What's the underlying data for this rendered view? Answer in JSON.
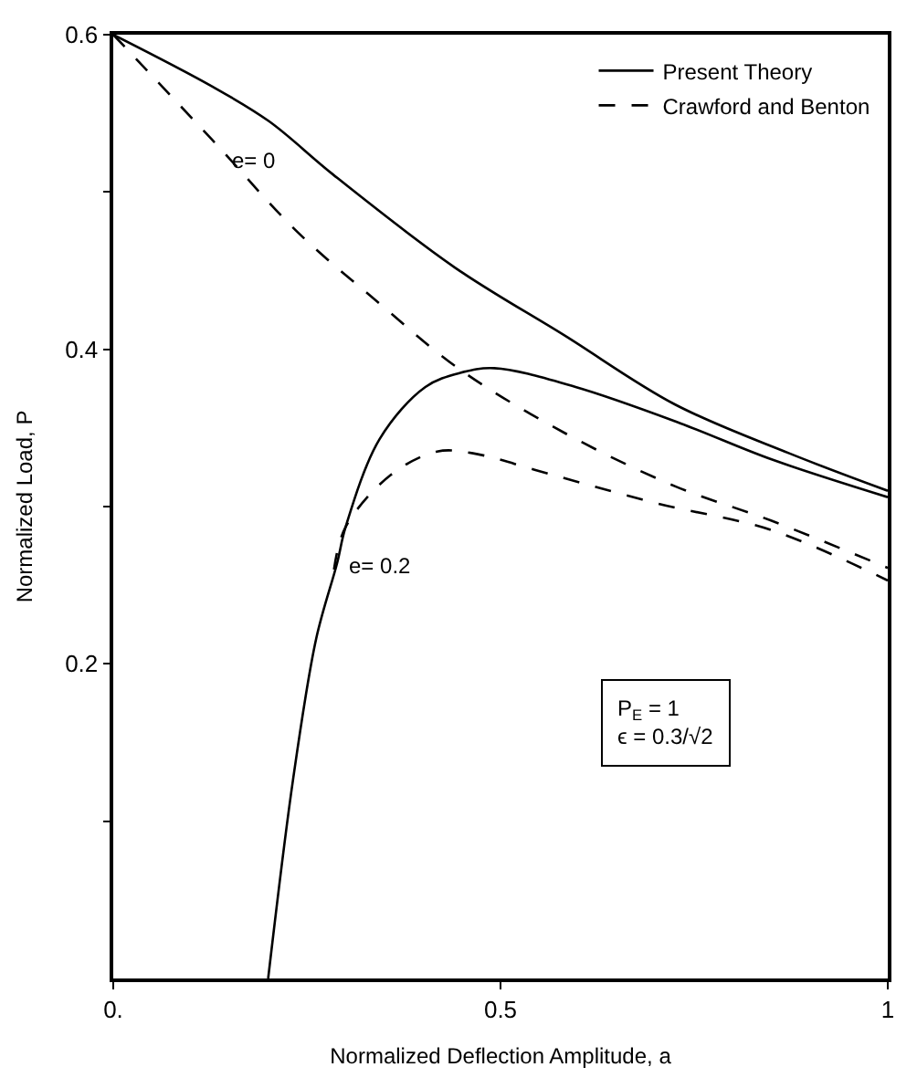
{
  "chart_data": {
    "type": "line",
    "xlabel": "Normalized Deflection Amplitude, a",
    "ylabel": "Normalized Load, P",
    "xlim": [
      0,
      1
    ],
    "ylim": [
      0,
      0.6
    ],
    "xticks": [
      {
        "value": 0,
        "label": "0."
      },
      0.5,
      1
    ],
    "yticks": [
      {
        "value": 0.1,
        "label": null
      },
      0.2,
      {
        "value": 0.3,
        "label": null
      },
      0.4,
      {
        "value": 0.5,
        "label": null
      },
      0.6
    ],
    "legend": "top right",
    "marker": "none",
    "series": [
      {
        "name": "Present Theory",
        "color": "#000000",
        "line_style": "solid",
        "x": [
          0,
          0.128,
          0.201,
          0.284,
          0.441,
          0.582,
          0.725,
          0.872,
          1
        ],
        "values": [
          0.6,
          0.567,
          0.545,
          0.511,
          0.452,
          0.409,
          0.365,
          0.334,
          0.31
        ]
      },
      {
        "name": "Crawford and Benton",
        "color": "#000000",
        "line_style": "dashed",
        "x": [
          0,
          0.128,
          0.239,
          0.344,
          0.448,
          0.582,
          0.725,
          0.85,
          1
        ],
        "values": [
          0.6,
          0.533,
          0.474,
          0.429,
          0.387,
          0.347,
          0.313,
          0.291,
          0.261
        ]
      },
      {
        "color": "#000000",
        "line_style": "solid",
        "x": [
          0.2,
          0.232,
          0.262,
          0.289,
          0.3,
          0.344,
          0.403,
          0.448,
          0.492,
          0.597,
          0.732,
          0.85,
          1
        ],
        "values": [
          0,
          0.126,
          0.216,
          0.264,
          0.287,
          0.343,
          0.376,
          0.385,
          0.388,
          0.376,
          0.353,
          0.33,
          0.306
        ]
      },
      {
        "color": "#000000",
        "line_style": "dashed",
        "x": [
          0.285,
          0.3,
          0.358,
          0.418,
          0.463,
          0.568,
          0.702,
          0.85,
          1
        ],
        "values": [
          0.26,
          0.287,
          0.32,
          0.335,
          0.334,
          0.32,
          0.302,
          0.285,
          0.253
        ]
      }
    ],
    "annotations": [
      {
        "text": "e= 0",
        "x": 0.14,
        "y": 0.52
      },
      {
        "text": "e= 0.2",
        "x": 0.29,
        "y": 0.262
      },
      "P$_{E}$ = 1\nϵ = 0.3/√2"
    ]
  }
}
